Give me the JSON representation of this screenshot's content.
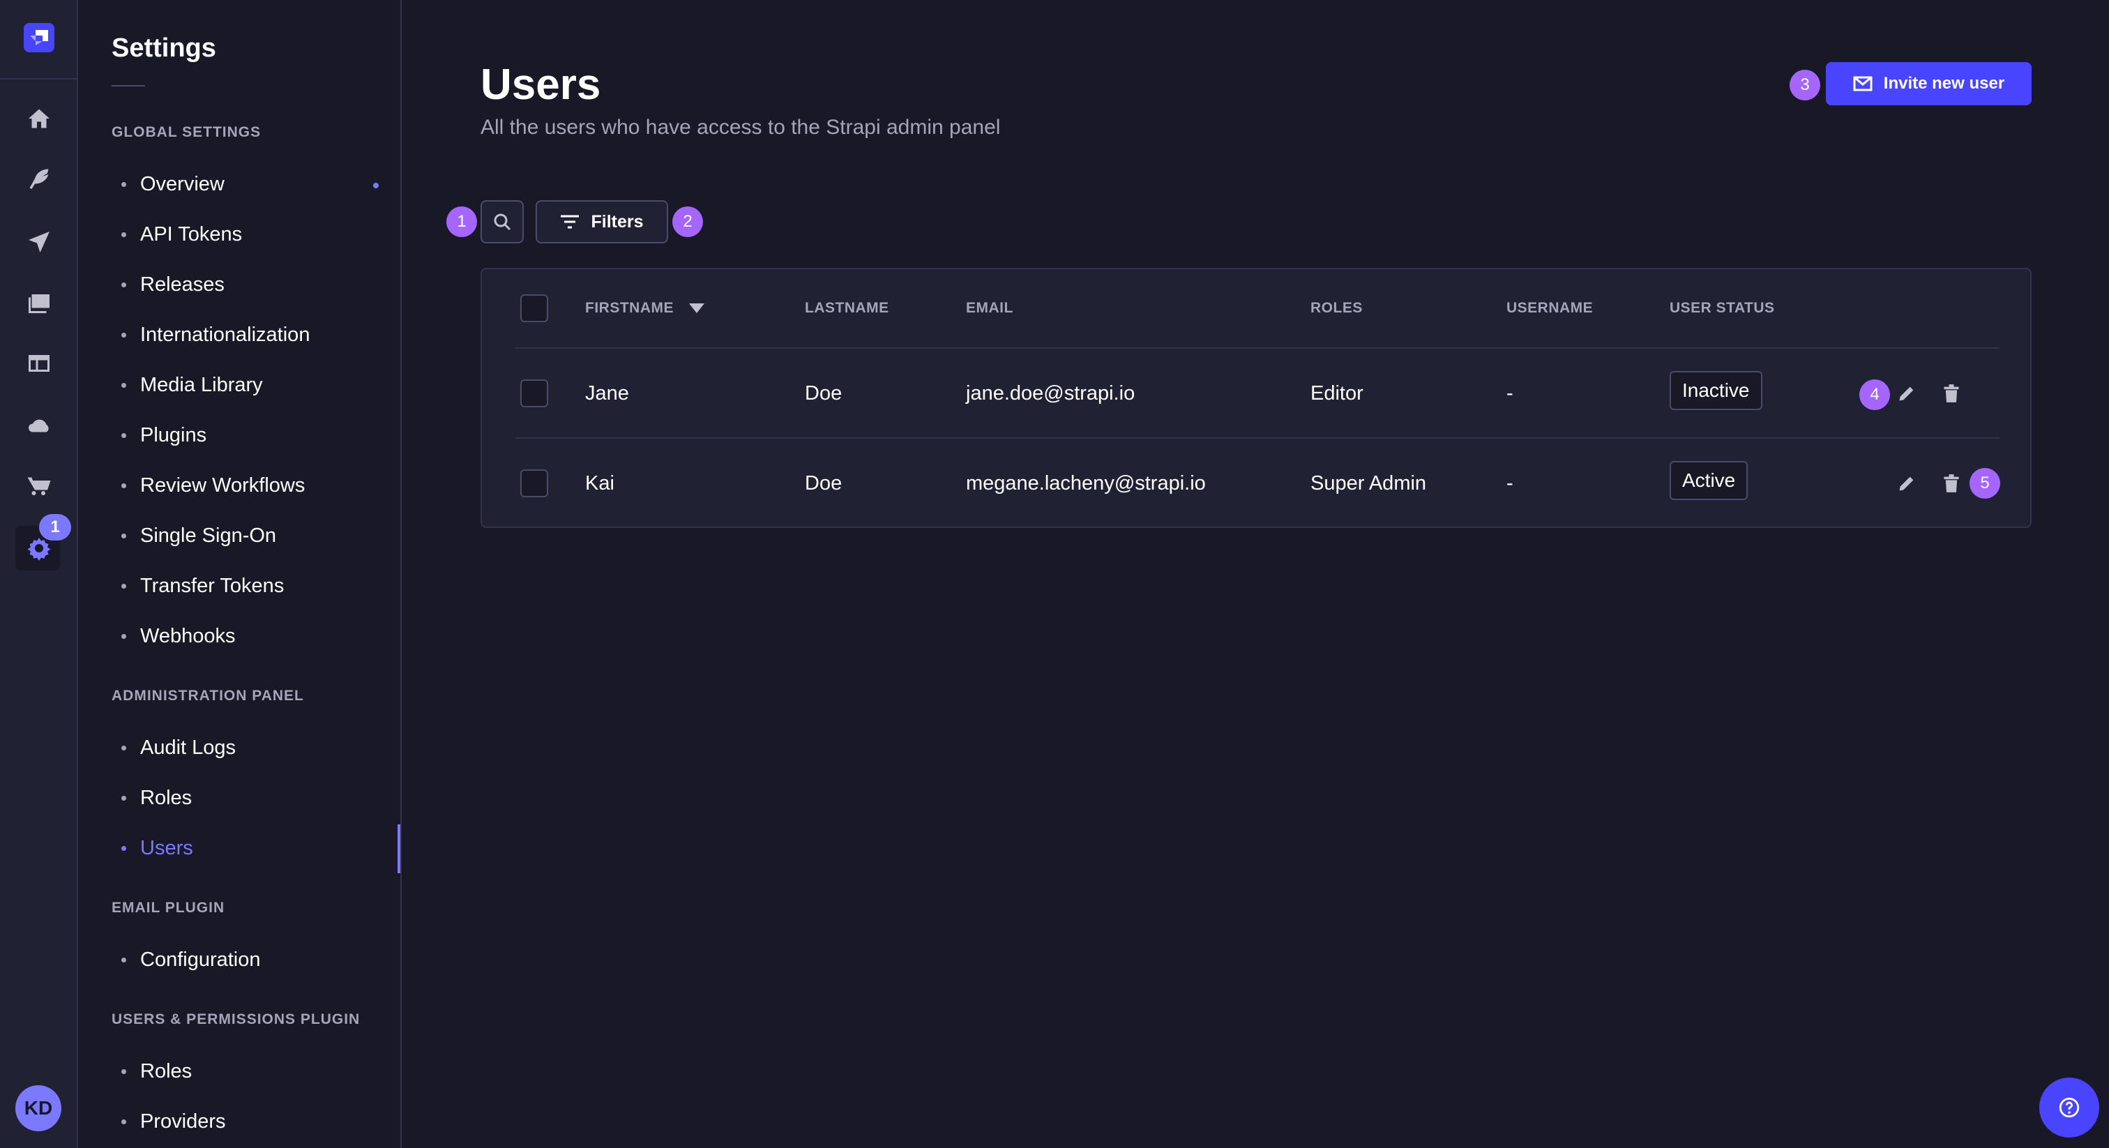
{
  "colors": {
    "background": "#181826",
    "panel": "#212134",
    "border": "#32324d",
    "primary": "#4945ff",
    "active": "#7b79ff",
    "annotation": "#a466ff"
  },
  "rail": {
    "icons": [
      "strapi-logo",
      "home-icon",
      "feather-icon",
      "paper-plane-icon",
      "images-icon",
      "layout-icon",
      "cloud-icon",
      "cart-icon",
      "gear-icon"
    ],
    "notification_count": "1",
    "avatar_initials": "KD"
  },
  "sidebar": {
    "title": "Settings",
    "sections": [
      {
        "label": "GLOBAL SETTINGS",
        "items": [
          {
            "label": "Overview"
          },
          {
            "label": "API Tokens"
          },
          {
            "label": "Releases"
          },
          {
            "label": "Internationalization"
          },
          {
            "label": "Media Library"
          },
          {
            "label": "Plugins"
          },
          {
            "label": "Review Workflows"
          },
          {
            "label": "Single Sign-On"
          },
          {
            "label": "Transfer Tokens"
          },
          {
            "label": "Webhooks"
          }
        ]
      },
      {
        "label": "ADMINISTRATION PANEL",
        "items": [
          {
            "label": "Audit Logs"
          },
          {
            "label": "Roles"
          },
          {
            "label": "Users",
            "active": true
          }
        ]
      },
      {
        "label": "EMAIL PLUGIN",
        "items": [
          {
            "label": "Configuration"
          }
        ]
      },
      {
        "label": "USERS & PERMISSIONS PLUGIN",
        "items": [
          {
            "label": "Roles"
          },
          {
            "label": "Providers"
          }
        ]
      }
    ]
  },
  "header": {
    "title": "Users",
    "subtitle": "All the users who have access to the Strapi admin panel",
    "invite_label": "Invite new user"
  },
  "toolbar": {
    "filters_label": "Filters"
  },
  "annotations": [
    "1",
    "2",
    "3",
    "4",
    "5"
  ],
  "table": {
    "columns": [
      "FIRSTNAME",
      "LASTNAME",
      "EMAIL",
      "ROLES",
      "USERNAME",
      "USER STATUS"
    ],
    "sort": "FIRSTNAME descending",
    "rows": [
      {
        "firstname": "Jane",
        "lastname": "Doe",
        "email": "jane.doe@strapi.io",
        "roles": "Editor",
        "username": "-",
        "status": "Inactive"
      },
      {
        "firstname": "Kai",
        "lastname": "Doe",
        "email": "megane.lacheny@strapi.io",
        "roles": "Super Admin",
        "username": "-",
        "status": "Active"
      }
    ]
  }
}
